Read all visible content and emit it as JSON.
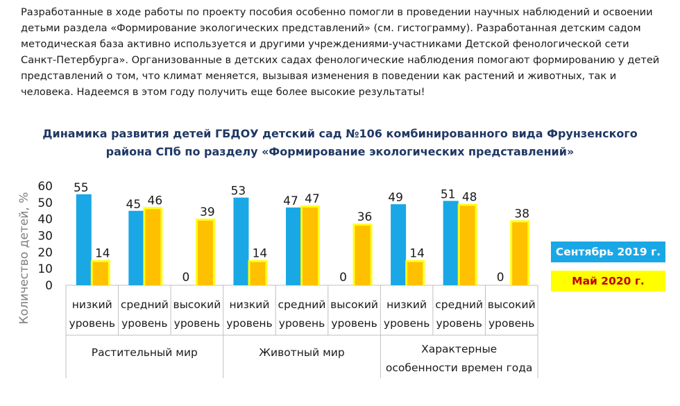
{
  "intro_text": "Разработанные в ходе работы по проекту пособия особенно помогли в проведении  научных наблюдений и освоении детьми раздела «Формирование экологических представлений» (см. гистограмму). Разработанная детским садом методическая база активно используется и другими учреждениями-участниками Детской фенологической сети Санкт-Петербурга». Организованные в детских садах фенологические наблюдения помогают формированию у детей представлений о том, что климат меняется, вызывая изменения в поведении как растений и животных, так и человека. Надеемся в этом году получить еще более высокие результаты!",
  "chart_data": {
    "type": "bar",
    "title_line1": "Динамика развития детей ГБДОУ детский сад №106   комбинированного вида Фрунзенского",
    "title_line2": "района СПб по разделу «Формирование экологических представлений»",
    "ylabel": "Количество  детей, %",
    "ylim": [
      0,
      60
    ],
    "yticks": [
      0,
      10,
      20,
      30,
      40,
      50,
      60
    ],
    "grid": false,
    "legend_position": "right",
    "groups": [
      {
        "label": "Растительный мир",
        "label_lines": [
          "Растительный мир"
        ]
      },
      {
        "label": "Животный мир",
        "label_lines": [
          "Животный мир"
        ]
      },
      {
        "label": "Характерные особенности времен года",
        "label_lines": [
          "Характерные",
          "особенности времен года"
        ]
      }
    ],
    "categories": [
      {
        "line1": "низкий",
        "line2": "уровень"
      },
      {
        "line1": "средний",
        "line2": "уровень"
      },
      {
        "line1": "высокий",
        "line2": "уровень"
      },
      {
        "line1": "низкий",
        "line2": "уровень"
      },
      {
        "line1": "средний",
        "line2": "уровень"
      },
      {
        "line1": "высокий",
        "line2": "уровень"
      },
      {
        "line1": "низкий",
        "line2": "уровень"
      },
      {
        "line1": "средний",
        "line2": "уровень"
      },
      {
        "line1": "высокий",
        "line2": "уровень"
      }
    ],
    "series": [
      {
        "name": "Сентябрь 2019 г.",
        "color": "#1aa7e6",
        "label_color": "#ffffff",
        "values": [
          55,
          45,
          0,
          53,
          47,
          0,
          49,
          51,
          0
        ]
      },
      {
        "name": "Май 2020 г.",
        "color": "#ffc000",
        "glow": "#ffff00",
        "label_color": "#c00000",
        "values": [
          14,
          46,
          39,
          14,
          47,
          36,
          14,
          48,
          38
        ]
      }
    ]
  }
}
